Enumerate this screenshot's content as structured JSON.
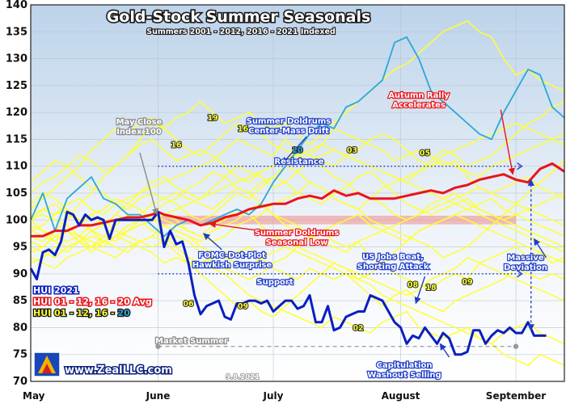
{
  "chart_data": {
    "type": "line",
    "title": "Gold-Stock Summer Seasonals",
    "subtitle": "Summers 2001 - 2012, 2016 - 2021 Indexed",
    "ylim": [
      70,
      140
    ],
    "yticks": [
      70,
      75,
      80,
      85,
      90,
      95,
      100,
      105,
      110,
      115,
      120,
      125,
      130,
      135,
      140
    ],
    "x_range_trading_days": [
      0,
      88
    ],
    "month_ticks": [
      {
        "label": "May",
        "day": 0
      },
      {
        "label": "June",
        "day": 21
      },
      {
        "label": "July",
        "day": 40
      },
      {
        "label": "August",
        "day": 61
      },
      {
        "label": "September",
        "day": 80
      }
    ],
    "grid": true,
    "background": {
      "top": "#bcd3ea",
      "bottom": "#ffffff"
    },
    "colors": {
      "individual_years": "#ffff33",
      "year_2020": "#2aa8d8",
      "hui_2021": "#0a1fbf",
      "average": "#e8151b",
      "resistance_support": "#1e3cc8",
      "market_summer": "#999999"
    },
    "legend": {
      "placement": "bottom-left",
      "hui2021": "HUI 2021",
      "avg": "HUI 01 - 12, 16 - 20 Avg",
      "indiv_prefix": "HUI 01 - 12, 16 - ",
      "indiv_suffix": "20"
    },
    "series": [
      {
        "name": "HUI 2021",
        "x": [
          0,
          1,
          2,
          3,
          4,
          5,
          6,
          7,
          8,
          9,
          10,
          11,
          12,
          13,
          14,
          15,
          16,
          17,
          18,
          19,
          20,
          21,
          22,
          23,
          24,
          25,
          26,
          27,
          28,
          29,
          30,
          31,
          32,
          33,
          34,
          35,
          36,
          37,
          38,
          39,
          40,
          41,
          42,
          43,
          44,
          45,
          46,
          47,
          48,
          49,
          50,
          51,
          52,
          53,
          54,
          55,
          56,
          57,
          58,
          59,
          60,
          61,
          62,
          63,
          64,
          65,
          66,
          67,
          68,
          69,
          70,
          71,
          72,
          73,
          74,
          75,
          76,
          77,
          78,
          79,
          80,
          81,
          82,
          83,
          84,
          85
        ],
        "values": [
          91,
          89,
          94,
          94.5,
          93.5,
          96,
          101.5,
          101,
          99,
          101,
          100,
          100.5,
          100,
          96.5,
          100,
          100,
          100,
          100,
          100,
          100,
          100,
          101.5,
          95,
          98,
          95.5,
          96,
          92,
          86,
          82.5,
          84,
          84.5,
          85,
          82,
          81.5,
          84.5,
          84.5,
          85,
          85,
          84.5,
          85,
          83,
          84,
          85,
          85,
          83.5,
          84,
          86,
          81,
          81,
          84,
          79.5,
          80,
          82,
          82.5,
          83,
          83,
          86,
          85.5,
          85,
          83,
          81,
          80,
          77,
          78.5,
          78,
          80,
          78.5,
          77,
          79,
          78,
          75,
          75,
          75.5,
          79.5,
          79.5,
          77,
          78.5,
          79.5,
          79,
          80,
          79,
          79,
          81,
          78.5,
          78.5,
          78.5
        ]
      },
      {
        "name": "HUI 01 - 12, 16 - 20 Avg",
        "x": [
          0,
          2,
          4,
          6,
          8,
          10,
          12,
          14,
          16,
          18,
          20,
          21,
          22,
          24,
          26,
          28,
          30,
          32,
          34,
          36,
          38,
          40,
          42,
          44,
          46,
          48,
          50,
          52,
          54,
          56,
          58,
          60,
          62,
          64,
          66,
          68,
          70,
          72,
          74,
          76,
          78,
          80,
          82,
          84,
          86,
          88
        ],
        "values": [
          97,
          97,
          98,
          98,
          99,
          99,
          99.5,
          100,
          100.5,
          100.5,
          101,
          101.5,
          101,
          100.5,
          100,
          99,
          99.5,
          100.5,
          101,
          102,
          102.5,
          103,
          103,
          104,
          104.5,
          104,
          105.5,
          104.5,
          105,
          104,
          104,
          104,
          104.5,
          105,
          105.5,
          105,
          106,
          106.5,
          107.5,
          108,
          108.5,
          107.5,
          107,
          109.5,
          110.5,
          109
        ]
      },
      {
        "name": "HUI 2020",
        "x": [
          0,
          2,
          4,
          6,
          8,
          10,
          12,
          14,
          16,
          18,
          20,
          22,
          24,
          26,
          28,
          30,
          32,
          34,
          36,
          38,
          40,
          42,
          44,
          46,
          48,
          50,
          52,
          54,
          56,
          58,
          60,
          62,
          64,
          66,
          68,
          70,
          72,
          74,
          76,
          78,
          80,
          82,
          84,
          86,
          88
        ],
        "values": [
          100,
          105,
          98,
          104,
          106,
          108,
          104,
          103,
          101,
          101,
          99,
          97,
          99,
          100,
          99,
          100,
          101,
          102,
          101,
          103,
          107,
          110,
          113,
          116,
          118,
          117,
          121,
          122,
          124,
          126,
          133,
          134,
          130,
          124,
          122,
          120,
          118,
          116,
          115,
          120,
          124,
          128,
          127,
          121,
          119
        ]
      }
    ],
    "year_paths": [
      [
        100,
        98,
        96,
        95,
        96,
        94,
        96,
        97,
        96,
        95,
        94,
        92,
        93,
        92,
        92,
        93,
        94,
        94,
        95,
        93,
        91,
        90,
        89,
        91,
        90,
        89,
        90,
        88,
        86,
        84,
        86,
        87,
        85,
        84,
        83,
        85,
        86,
        87,
        88,
        89,
        91,
        90,
        89,
        90,
        89
      ],
      [
        101,
        102,
        101,
        103,
        104,
        102,
        101,
        103,
        104,
        105,
        106,
        107,
        108,
        109,
        110,
        111,
        113,
        115,
        114,
        113,
        112,
        115,
        113,
        112,
        114,
        117,
        116,
        115,
        114,
        113,
        111,
        112,
        113,
        112,
        110,
        111,
        108,
        106,
        105,
        106,
        107,
        108,
        106,
        105,
        104
      ],
      [
        97,
        96,
        98,
        100,
        103,
        105,
        108,
        110,
        112,
        115,
        118,
        117,
        119,
        120,
        122,
        120,
        118,
        119,
        120,
        118,
        117,
        118,
        116,
        114,
        116,
        118,
        120,
        122,
        124,
        126,
        128,
        129,
        131,
        133,
        135,
        136,
        137,
        135,
        134,
        130,
        127,
        128,
        126,
        125,
        124
      ],
      [
        103,
        105,
        104,
        102,
        100,
        101,
        99,
        101,
        100,
        101,
        103,
        104,
        105,
        104,
        103,
        102,
        104,
        106,
        105,
        103,
        101,
        100,
        99,
        97,
        98,
        96,
        95,
        96,
        93,
        92,
        90,
        89,
        88,
        87,
        89,
        90,
        89,
        92,
        93,
        94,
        95,
        93,
        94,
        92,
        93
      ],
      [
        95,
        94,
        93,
        95,
        96,
        97,
        96,
        95,
        94,
        96,
        97,
        96,
        94,
        92,
        90,
        88,
        86,
        84,
        85,
        83,
        82,
        84,
        86,
        88,
        90,
        92,
        91,
        89,
        90,
        92,
        94,
        96,
        98,
        99,
        100,
        101,
        102,
        103,
        104,
        102,
        101,
        100,
        99,
        98,
        97
      ],
      [
        105,
        107,
        108,
        110,
        112,
        111,
        109,
        110,
        112,
        114,
        115,
        113,
        111,
        112,
        113,
        112,
        110,
        108,
        107,
        109,
        110,
        111,
        113,
        112,
        111,
        110,
        112,
        113,
        115,
        116,
        115,
        113,
        111,
        110,
        112,
        113,
        114,
        115,
        116,
        117,
        118,
        117,
        116,
        115,
        114
      ],
      [
        92,
        93,
        95,
        94,
        96,
        98,
        97,
        99,
        101,
        100,
        98,
        97,
        95,
        93,
        92,
        91,
        90,
        88,
        86,
        85,
        84,
        83,
        82,
        81,
        80,
        82,
        81,
        80,
        79,
        81,
        82,
        83,
        80,
        79,
        78,
        79,
        80,
        78,
        77,
        79,
        80,
        81,
        79,
        78,
        77
      ],
      [
        98,
        97,
        96,
        98,
        99,
        101,
        102,
        104,
        103,
        105,
        107,
        108,
        106,
        105,
        104,
        106,
        108,
        110,
        109,
        108,
        106,
        107,
        109,
        111,
        110,
        108,
        107,
        105,
        104,
        103,
        101,
        100,
        101,
        103,
        104,
        105,
        103,
        102,
        101,
        100,
        99,
        98,
        97,
        96,
        95
      ],
      [
        100,
        101,
        100,
        99,
        97,
        96,
        95,
        97,
        98,
        99,
        100,
        101,
        100,
        98,
        97,
        96,
        97,
        99,
        100,
        101,
        103,
        104,
        105,
        107,
        106,
        104,
        103,
        102,
        100,
        99,
        98,
        97,
        96,
        95,
        93,
        94,
        95,
        97,
        99,
        101,
        103,
        105,
        107,
        109,
        111
      ],
      [
        96,
        95,
        97,
        98,
        97,
        95,
        94,
        93,
        95,
        96,
        97,
        99,
        98,
        97,
        95,
        94,
        93,
        92,
        91,
        93,
        94,
        95,
        94,
        93,
        92,
        91,
        90,
        89,
        88,
        86,
        85,
        84,
        83,
        82,
        81,
        80,
        79,
        78,
        77,
        75,
        74,
        73,
        75,
        74,
        73
      ],
      [
        102,
        104,
        106,
        108,
        110,
        113,
        115,
        117,
        116,
        118,
        119,
        117,
        115,
        113,
        112,
        114,
        116,
        118,
        117,
        116,
        114,
        113,
        112,
        111,
        112,
        113,
        112,
        111,
        110,
        109,
        108,
        107,
        109,
        111,
        113,
        112,
        110,
        111,
        112,
        114,
        116,
        118,
        119,
        121,
        122
      ],
      [
        94,
        95,
        97,
        98,
        96,
        95,
        97,
        96,
        98,
        100,
        101,
        100,
        99,
        98,
        97,
        99,
        100,
        102,
        101,
        99,
        97,
        96,
        95,
        94,
        93,
        92,
        91,
        90,
        89,
        88,
        87,
        86,
        87,
        89,
        90,
        91,
        93,
        92,
        91,
        90,
        89,
        88,
        87,
        86,
        85
      ],
      [
        107,
        109,
        111,
        110,
        108,
        106,
        105,
        103,
        102,
        104,
        105,
        104,
        103,
        101,
        100,
        101,
        103,
        105,
        104,
        106,
        108,
        110,
        109,
        107,
        106,
        104,
        103,
        102,
        104,
        106,
        107,
        108,
        109,
        110,
        111,
        110,
        109,
        108,
        110,
        111,
        112,
        113,
        114,
        115,
        116
      ],
      [
        99,
        98,
        97,
        96,
        97,
        99,
        100,
        98,
        97,
        96,
        95,
        96,
        97,
        96,
        94,
        92,
        91,
        90,
        89,
        90,
        92,
        93,
        95,
        97,
        98,
        99,
        100,
        101,
        99,
        98,
        97,
        96,
        98,
        99,
        100,
        101,
        100,
        99,
        98,
        97,
        96,
        95,
        94,
        93,
        92
      ],
      [
        100,
        102,
        103,
        101,
        100,
        98,
        96,
        97,
        99,
        100,
        101,
        103,
        104,
        106,
        107,
        109,
        108,
        106,
        105,
        107,
        108,
        107,
        105,
        104,
        103,
        105,
        106,
        108,
        109,
        107,
        105,
        103,
        102,
        101,
        102,
        103,
        104,
        102,
        101,
        100,
        101,
        102,
        103,
        104,
        105
      ],
      [
        93,
        92,
        91,
        93,
        94,
        95,
        96,
        97,
        98,
        99,
        100,
        101,
        102,
        103,
        104,
        105,
        106,
        107,
        108,
        109,
        110,
        111,
        112,
        113,
        114,
        113,
        112,
        111,
        110,
        109,
        108,
        107,
        106,
        105,
        104,
        103,
        102,
        101,
        100,
        99,
        98,
        97,
        96,
        95,
        94
      ],
      [
        98,
        99,
        101,
        102,
        100,
        98,
        99,
        101,
        103,
        102,
        100,
        99,
        98,
        97,
        96,
        98,
        99,
        100,
        102,
        103,
        101,
        99,
        98,
        97,
        96,
        95,
        94,
        96,
        97,
        98,
        99,
        100,
        101,
        102,
        103,
        104,
        105,
        106,
        105,
        104,
        103,
        102,
        101,
        100,
        99
      ]
    ],
    "reference_lines": [
      {
        "name": "Resistance",
        "y": 110,
        "x": [
          21,
          81
        ]
      },
      {
        "name": "Support",
        "y": 90,
        "x": [
          21,
          81
        ]
      },
      {
        "name": "Market Summer",
        "y": 76.5,
        "x": [
          21,
          80
        ]
      }
    ],
    "seasonal_low_band": [
      99.2,
      100.8
    ],
    "annotations": [
      {
        "text": [
          "May Close",
          "Index 100"
        ]
      },
      {
        "text": [
          "Summer Doldrums",
          "Center-Mass Drift"
        ]
      },
      {
        "text": [
          "Autumn Rally",
          "Accelerates"
        ]
      },
      {
        "text": [
          "Resistance"
        ]
      },
      {
        "text": [
          "Summer Doldrums",
          "Seasonal Low"
        ]
      },
      {
        "text": [
          "FOMC-Dot-Plot",
          "Hawkish Surprise"
        ]
      },
      {
        "text": [
          "Support"
        ]
      },
      {
        "text": [
          "US Jobs Beat,",
          "Shorting Attack"
        ]
      },
      {
        "text": [
          "Massive",
          "Deviation"
        ]
      },
      {
        "text": [
          "Market Summer"
        ]
      },
      {
        "text": [
          "Capitulation",
          "Washout Selling"
        ]
      }
    ],
    "year_labels": [
      {
        "text": "16",
        "x": 24,
        "y": 113.5
      },
      {
        "text": "19",
        "x": 30,
        "y": 118.5
      },
      {
        "text": "16",
        "x": 35,
        "y": 116.5
      },
      {
        "text": "20",
        "x": 44,
        "y": 112.5
      },
      {
        "text": "03",
        "x": 53,
        "y": 112.5
      },
      {
        "text": "05",
        "x": 65,
        "y": 112
      },
      {
        "text": "06",
        "x": 26,
        "y": 84
      },
      {
        "text": "09",
        "x": 35,
        "y": 83.5
      },
      {
        "text": "02",
        "x": 54,
        "y": 79.5
      },
      {
        "text": "08",
        "x": 63,
        "y": 87.5
      },
      {
        "text": "18",
        "x": 66,
        "y": 87
      },
      {
        "text": "09",
        "x": 72,
        "y": 88
      }
    ],
    "logo_text": "www.ZealLLC.com",
    "date_text": "9.8.2021"
  }
}
